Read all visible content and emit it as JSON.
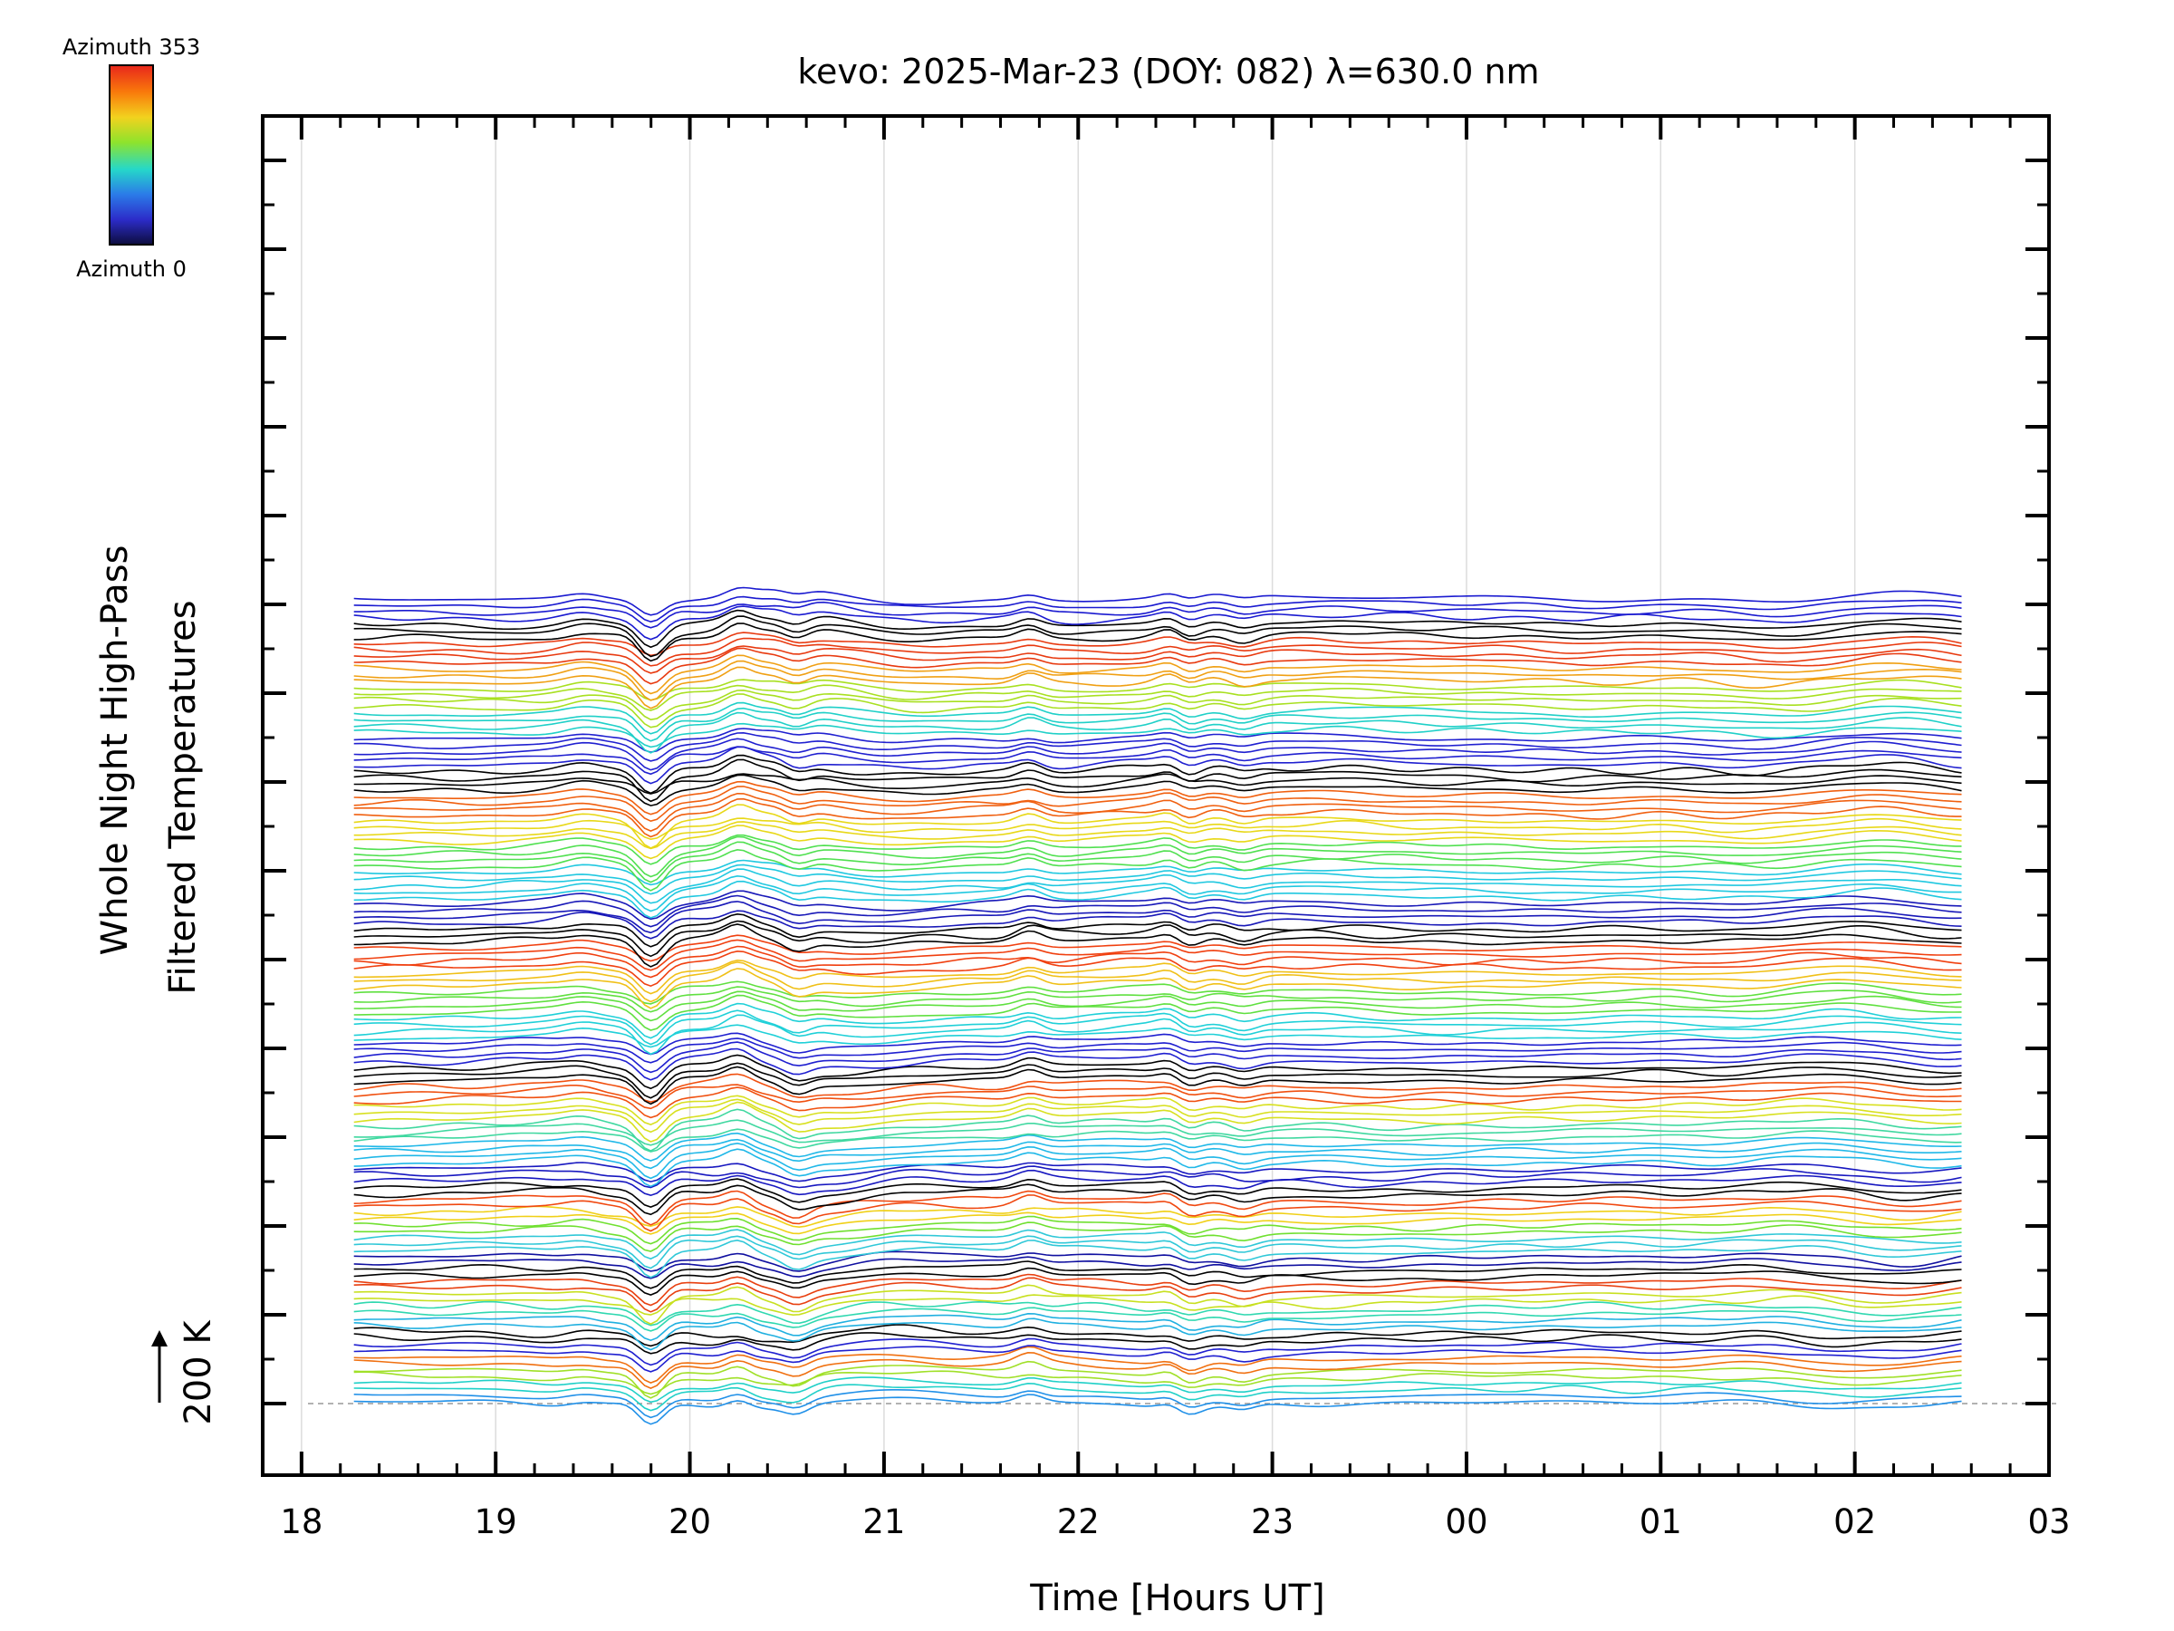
{
  "chart_data": {
    "type": "line",
    "title": "kevo: 2025-Mar-23 (DOY: 082) λ=630.0 nm",
    "xlabel": "Time [Hours UT]",
    "ylabel_line1": "Whole Night High-Pass",
    "ylabel_line2": "Filtered Temperatures",
    "x_unit": "hours since 18:00 UT",
    "xlim": [
      -0.2,
      9.0
    ],
    "x_ticks": [
      0,
      1,
      2,
      3,
      4,
      5,
      6,
      7,
      8,
      9
    ],
    "x_tick_labels": [
      "18",
      "19",
      "20",
      "21",
      "22",
      "23",
      "00",
      "01",
      "02",
      "03"
    ],
    "x_data_range": [
      0.27,
      8.55
    ],
    "scale_bar_label": "200 K",
    "colorbar": {
      "top_label": "Azimuth 353",
      "bottom_label": "Azimuth 0",
      "colors": [
        "#e8261c",
        "#f97a0b",
        "#f2d21e",
        "#8ee32c",
        "#25d8c9",
        "#2b7be8",
        "#2c2cc9",
        "#0d0d3d"
      ]
    },
    "palette": [
      "#000000",
      "#1010a0",
      "#2020d0",
      "#2d55e8",
      "#e84010",
      "#f07d10",
      "#f2c018",
      "#c9e21c",
      "#7fe028",
      "#35e06e",
      "#20d8c0",
      "#20c0e8"
    ],
    "n_traces": 128,
    "trace_spacing_k": 8.5,
    "stacked_blocks": [
      {
        "traces": 22,
        "colors": [
          "#1a1ad0",
          "#000000",
          "#e83a10",
          "#f0a014",
          "#a8e020",
          "#20d0c8"
        ]
      },
      {
        "traces": 26,
        "colors": [
          "#2020d0",
          "#000000",
          "#f06010",
          "#e8d818",
          "#50e050",
          "#20c8e0"
        ]
      },
      {
        "traces": 22,
        "colors": [
          "#1818b8",
          "#000000",
          "#f04010",
          "#f0c018",
          "#60e040",
          "#20d0d8"
        ]
      },
      {
        "traces": 20,
        "colors": [
          "#2020d0",
          "#000000",
          "#f05010",
          "#d8e020",
          "#40d8a0",
          "#20b8e8"
        ]
      },
      {
        "traces": 14,
        "colors": [
          "#1818c0",
          "#000000",
          "#f04810",
          "#f0d018",
          "#70e030",
          "#30c8d8"
        ]
      },
      {
        "traces": 12,
        "colors": [
          "#1010a0",
          "#000000",
          "#e84010",
          "#c8e020",
          "#30d8b0",
          "#20b0e0"
        ]
      },
      {
        "traces": 12,
        "colors": [
          "#000000",
          "#2020d0",
          "#f07010",
          "#a0e028",
          "#20d0c8",
          "#2090e8"
        ]
      }
    ],
    "events": [
      {
        "t": 1.8,
        "amplitude": -24
      },
      {
        "t": 2.25,
        "amplitude": 10
      },
      {
        "t": 2.55,
        "amplitude": -9
      },
      {
        "t": 3.75,
        "amplitude": 8
      },
      {
        "t": 4.5,
        "amplitude": 10
      },
      {
        "t": 4.55,
        "amplitude": -12
      },
      {
        "t": 4.85,
        "amplitude": -6
      }
    ]
  }
}
